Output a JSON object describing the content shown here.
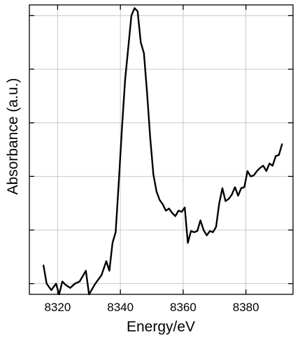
{
  "chart_data": {
    "type": "line",
    "title": "",
    "xlabel": "Energy/eV",
    "ylabel": "Absorbance (a.u.)",
    "xlim": [
      8311,
      8395
    ],
    "ylim": [
      -0.1,
      2.6
    ],
    "x_ticks": [
      8320,
      8340,
      8360,
      8380
    ],
    "x_tick_labels": [
      "8320",
      "8340",
      "8360",
      "8380"
    ],
    "y_ticks": [
      0.0,
      0.5,
      1.0,
      1.5,
      2.0,
      2.5
    ],
    "show_y_tick_labels": false,
    "grid": true,
    "legend": "none",
    "series": [
      {
        "color": "#000000",
        "x": [
          8315.5,
          8316.5,
          8318,
          8319.5,
          8320.5,
          8321.5,
          8322.5,
          8324,
          8325.5,
          8327,
          8329,
          8330,
          8332,
          8334,
          8335.5,
          8336.5,
          8337.5,
          8338.5,
          8339.5,
          8340.5,
          8341.5,
          8342.5,
          8343.5,
          8344.5,
          8345.5,
          8346.5,
          8347.5,
          8348.5,
          8349.5,
          8350.5,
          8351.5,
          8352.5,
          8353.5,
          8354.5,
          8355.5,
          8356.5,
          8357.5,
          8358.5,
          8359.5,
          8360.5,
          8361.5,
          8362.5,
          8363.5,
          8364.5,
          8365.5,
          8366.5,
          8367.5,
          8368.5,
          8369.5,
          8370.5,
          8371.5,
          8372.5,
          8373.5,
          8374.5,
          8375.5,
          8376.5,
          8377.5,
          8378.5,
          8379.5,
          8380.5,
          8381.5,
          8382.5,
          8383.5,
          8384.5,
          8385.5,
          8386.5,
          8387.5,
          8388.5,
          8389.5,
          8390.5,
          8391.5
        ],
        "y": [
          0.17,
          0.0,
          -0.06,
          0.0,
          -0.1,
          0.02,
          -0.01,
          -0.04,
          0.0,
          0.02,
          0.12,
          -0.1,
          0.0,
          0.08,
          0.21,
          0.12,
          0.38,
          0.48,
          0.95,
          1.45,
          1.9,
          2.2,
          2.5,
          2.57,
          2.54,
          2.25,
          2.15,
          1.78,
          1.36,
          1.02,
          0.86,
          0.78,
          0.74,
          0.68,
          0.7,
          0.66,
          0.63,
          0.68,
          0.67,
          0.71,
          0.38,
          0.49,
          0.48,
          0.49,
          0.59,
          0.5,
          0.45,
          0.49,
          0.48,
          0.53,
          0.75,
          0.89,
          0.77,
          0.79,
          0.83,
          0.9,
          0.82,
          0.89,
          0.9,
          1.05,
          1.0,
          1.01,
          1.05,
          1.08,
          1.1,
          1.05,
          1.12,
          1.1,
          1.19,
          1.2,
          1.3
        ]
      }
    ]
  }
}
